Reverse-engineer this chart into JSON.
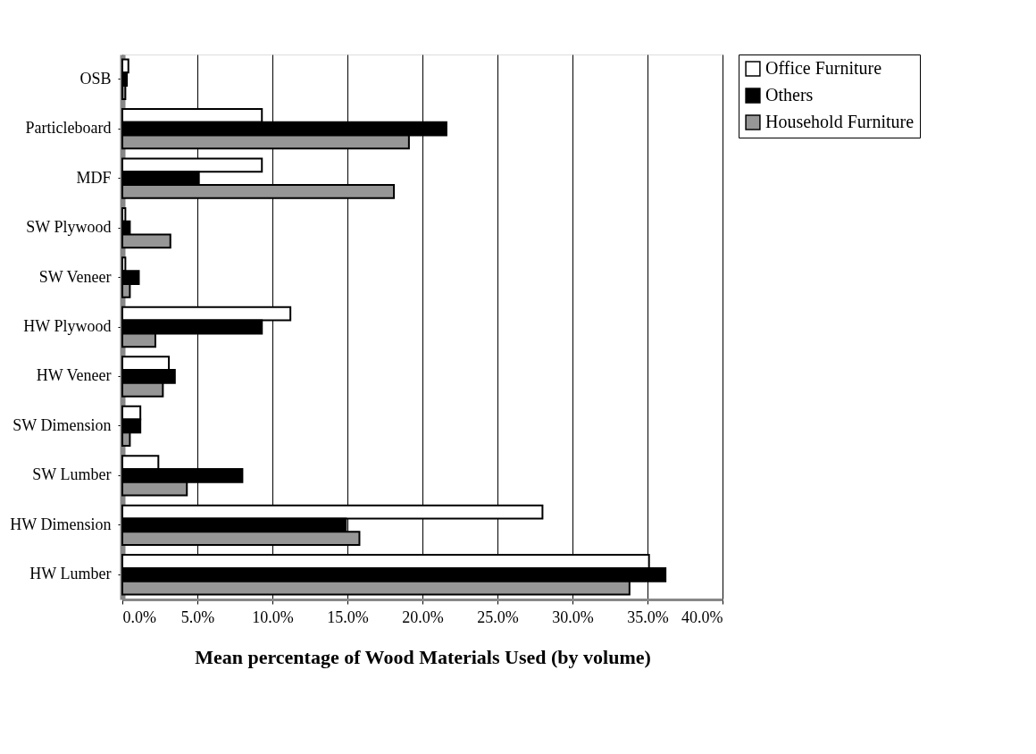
{
  "chart_data": {
    "type": "bar",
    "orientation": "horizontal",
    "xlabel": "Mean percentage of Wood Materials Used (by volume)",
    "categories": [
      "OSB",
      "Particleboard",
      "MDF",
      "SW Plywood",
      "SW Veneer",
      "HW Plywood",
      "HW Veneer",
      "SW Dimension",
      "SW Lumber",
      "HW Dimension",
      "HW Lumber"
    ],
    "series": [
      {
        "name": "Office Furniture",
        "color": "#ffffff",
        "values": [
          0.4,
          9.3,
          9.3,
          0.2,
          0.2,
          11.2,
          3.1,
          1.2,
          2.4,
          28.0,
          35.1
        ]
      },
      {
        "name": "Others",
        "color": "#000000",
        "values": [
          0.3,
          21.6,
          5.1,
          0.5,
          1.1,
          9.3,
          3.5,
          1.2,
          8.0,
          14.9,
          36.2
        ]
      },
      {
        "name": "Household Furniture",
        "color": "#969696",
        "values": [
          0.2,
          19.1,
          18.1,
          3.2,
          0.5,
          2.2,
          2.7,
          0.5,
          4.3,
          15.8,
          33.8
        ]
      }
    ],
    "xlim": [
      0,
      40
    ],
    "xticks": [
      {
        "value": 0,
        "label": "0.0%"
      },
      {
        "value": 5,
        "label": "5.0%"
      },
      {
        "value": 10,
        "label": "10.0%"
      },
      {
        "value": 15,
        "label": "15.0%"
      },
      {
        "value": 20,
        "label": "20.0%"
      },
      {
        "value": 25,
        "label": "25.0%"
      },
      {
        "value": 30,
        "label": "30.0%"
      },
      {
        "value": 35,
        "label": "35.0%"
      },
      {
        "value": 40,
        "label": "40.0%"
      }
    ],
    "grid": "x",
    "legend": "right"
  }
}
